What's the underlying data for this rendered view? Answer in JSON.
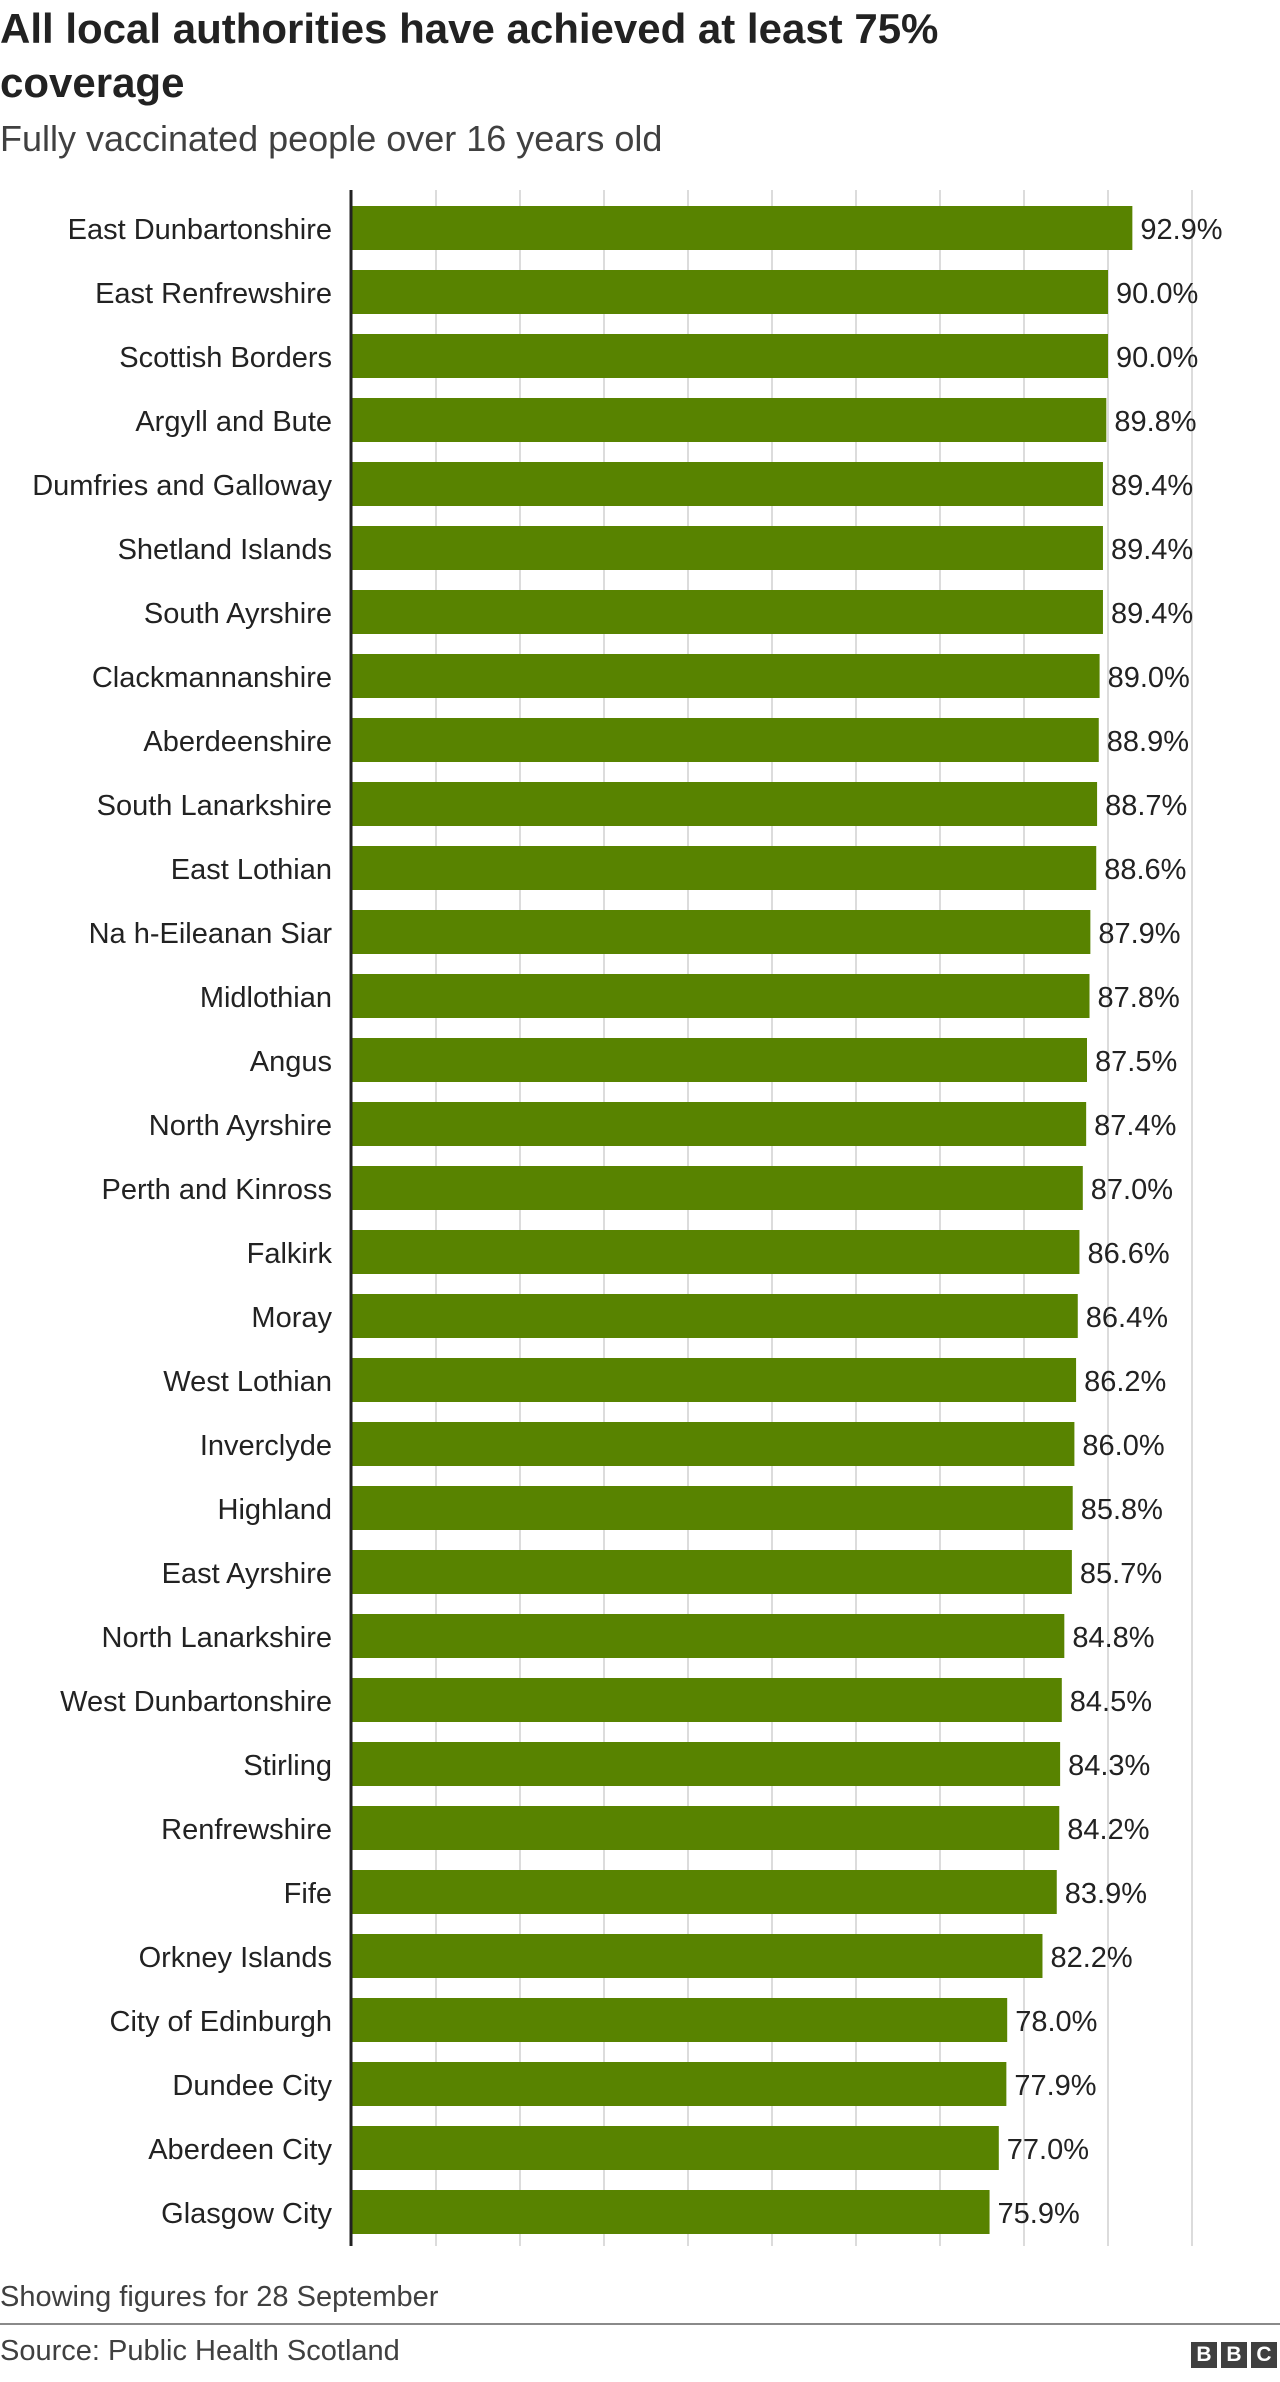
{
  "title": "All local authorities have achieved at least 75% coverage",
  "subtitle": "Fully vaccinated people over 16 years old",
  "note": "Showing figures for 28 September",
  "source": "Source: Public Health Scotland",
  "logo": [
    "B",
    "B",
    "C"
  ],
  "colors": {
    "bar": "#588300",
    "grid": "#dcdcdc",
    "axis": "#222222",
    "text": "#222222"
  },
  "chart_data": {
    "type": "bar",
    "orientation": "horizontal",
    "title": "All local authorities have achieved at least 75% coverage",
    "subtitle": "Fully vaccinated people over 16 years old",
    "xlim": [
      0,
      100
    ],
    "grid": true,
    "categories": [
      "East Dunbartonshire",
      "East Renfrewshire",
      "Scottish Borders",
      "Argyll and Bute",
      "Dumfries and Galloway",
      "Shetland Islands",
      "South Ayrshire",
      "Clackmannanshire",
      "Aberdeenshire",
      "South Lanarkshire",
      "East Lothian",
      "Na h-Eileanan Siar",
      "Midlothian",
      "Angus",
      "North Ayrshire",
      "Perth and Kinross",
      "Falkirk",
      "Moray",
      "West Lothian",
      "Inverclyde",
      "Highland",
      "East Ayrshire",
      "North Lanarkshire",
      "West Dunbartonshire",
      "Stirling",
      "Renfrewshire",
      "Fife",
      "Orkney Islands",
      "City of Edinburgh",
      "Dundee City",
      "Aberdeen City",
      "Glasgow City"
    ],
    "values": [
      92.9,
      90.0,
      90.0,
      89.8,
      89.4,
      89.4,
      89.4,
      89.0,
      88.9,
      88.7,
      88.6,
      87.9,
      87.8,
      87.5,
      87.4,
      87.0,
      86.6,
      86.4,
      86.2,
      86.0,
      85.8,
      85.7,
      84.8,
      84.5,
      84.3,
      84.2,
      83.9,
      82.2,
      78.0,
      77.9,
      77.0,
      75.9
    ],
    "value_labels": [
      "92.9%",
      "90.0%",
      "90.0%",
      "89.8%",
      "89.4%",
      "89.4%",
      "89.4%",
      "89.0%",
      "88.9%",
      "88.7%",
      "88.6%",
      "87.9%",
      "87.8%",
      "87.5%",
      "87.4%",
      "87.0%",
      "86.6%",
      "86.4%",
      "86.2%",
      "86.0%",
      "85.8%",
      "85.7%",
      "84.8%",
      "84.5%",
      "84.3%",
      "84.2%",
      "83.9%",
      "82.2%",
      "78.0%",
      "77.9%",
      "77.0%",
      "75.9%"
    ]
  }
}
